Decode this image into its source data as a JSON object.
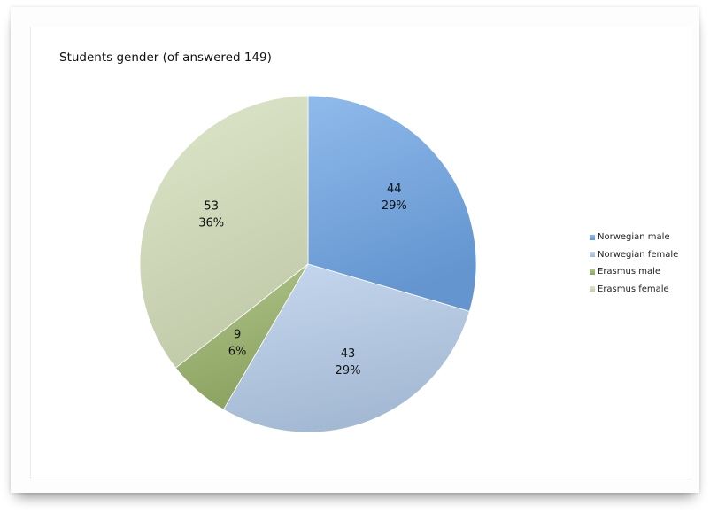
{
  "chart_data": {
    "type": "pie",
    "title": "Students gender (of answered 149)",
    "slices": [
      {
        "name": "Norwegian male",
        "value": 44,
        "percent_label": "29%",
        "color": "#6fa6e6"
      },
      {
        "name": "Norwegian female",
        "value": 43,
        "percent_label": "29%",
        "color": "#b6cdea"
      },
      {
        "name": "Erasmus male",
        "value": 9,
        "percent_label": "6%",
        "color": "#9bb56c"
      },
      {
        "name": "Erasmus female",
        "value": 53,
        "percent_label": "36%",
        "color": "#d6e0bc"
      }
    ],
    "legend_position": "right",
    "data_labels": "value and percent",
    "start_angle": "12 o'clock",
    "direction": "clockwise"
  }
}
